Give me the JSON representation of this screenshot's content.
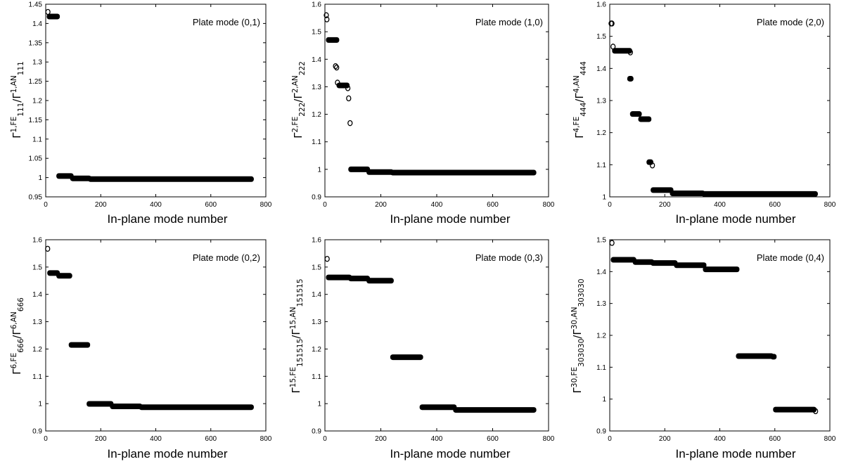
{
  "figure": {
    "panels": [
      {
        "id": "p1",
        "ylabel_main": "Γ",
        "ylabel_sup": "1,FE",
        "ylabel_sub": "111",
        "ylabel_mid": "/Γ",
        "ylabel_sup2": "1,AN",
        "ylabel_sub2": "111",
        "xlabel": "In-plane mode number"
      },
      {
        "id": "p2",
        "ylabel_main": "Γ",
        "ylabel_sup": "2,FE",
        "ylabel_sub": "222",
        "ylabel_mid": "/Γ",
        "ylabel_sup2": "2,AN",
        "ylabel_sub2": "222",
        "xlabel": "In-plane mode number"
      },
      {
        "id": "p3",
        "ylabel_main": "Γ",
        "ylabel_sup": "4,FE",
        "ylabel_sub": "444",
        "ylabel_mid": "/Γ",
        "ylabel_sup2": "4,AN",
        "ylabel_sub2": "444",
        "xlabel": "In-plane mode number"
      },
      {
        "id": "p4",
        "ylabel_main": "Γ",
        "ylabel_sup": "6,FE",
        "ylabel_sub": "666",
        "ylabel_mid": "/Γ",
        "ylabel_sup2": "6,AN",
        "ylabel_sub2": "666",
        "xlabel": "In-plane mode number"
      },
      {
        "id": "p5",
        "ylabel_main": "Γ",
        "ylabel_sup": "15,FE",
        "ylabel_sub": "151515",
        "ylabel_mid": "/Γ",
        "ylabel_sup2": "15,AN",
        "ylabel_sub2": "151515",
        "xlabel": "In-plane mode number"
      },
      {
        "id": "p6",
        "ylabel_main": "Γ",
        "ylabel_sup": "30,FE",
        "ylabel_sub": "303030",
        "ylabel_mid": "/Γ",
        "ylabel_sup2": "30,AN",
        "ylabel_sub2": "303030",
        "xlabel": "In-plane mode number"
      }
    ]
  },
  "chart_data": [
    {
      "type": "scatter",
      "annotation": "Plate mode (0,1)",
      "xlabel": "In-plane mode number",
      "ylabel": "Γ^{1,FE}_{111}/Γ^{1,AN}_{111}",
      "xlim": [
        0,
        800
      ],
      "ylim": [
        0.95,
        1.45
      ],
      "xticks": [
        0,
        200,
        400,
        600,
        800
      ],
      "yticks": [
        0.95,
        1,
        1.05,
        1.1,
        1.15,
        1.2,
        1.25,
        1.3,
        1.35,
        1.4,
        1.45
      ],
      "outliers": [
        {
          "x": 8,
          "y": 1.43
        }
      ],
      "segments": [
        {
          "x_start": 10,
          "x_end": 45,
          "y": 1.418
        },
        {
          "x_start": 45,
          "x_end": 95,
          "y": 1.004
        },
        {
          "x_start": 95,
          "x_end": 160,
          "y": 0.998
        },
        {
          "x_start": 160,
          "x_end": 750,
          "y": 0.996
        }
      ]
    },
    {
      "type": "scatter",
      "annotation": "Plate mode (1,0)",
      "xlabel": "In-plane mode number",
      "ylabel": "Γ^{2,FE}_{222}/Γ^{2,AN}_{222}",
      "xlim": [
        0,
        800
      ],
      "ylim": [
        0.9,
        1.6
      ],
      "xticks": [
        0,
        200,
        400,
        600,
        800
      ],
      "yticks": [
        0.9,
        1,
        1.1,
        1.2,
        1.3,
        1.4,
        1.5,
        1.6
      ],
      "outliers": [
        {
          "x": 5,
          "y": 1.56
        },
        {
          "x": 7,
          "y": 1.545
        },
        {
          "x": 38,
          "y": 1.375
        },
        {
          "x": 42,
          "y": 1.37
        },
        {
          "x": 45,
          "y": 1.315
        },
        {
          "x": 82,
          "y": 1.295
        },
        {
          "x": 85,
          "y": 1.258
        },
        {
          "x": 90,
          "y": 1.168
        }
      ],
      "segments": [
        {
          "x_start": 10,
          "x_end": 45,
          "y": 1.47
        },
        {
          "x_start": 48,
          "x_end": 82,
          "y": 1.305
        },
        {
          "x_start": 90,
          "x_end": 155,
          "y": 1.0
        },
        {
          "x_start": 155,
          "x_end": 240,
          "y": 0.99
        },
        {
          "x_start": 240,
          "x_end": 750,
          "y": 0.988
        }
      ]
    },
    {
      "type": "scatter",
      "annotation": "Plate mode (2,0)",
      "xlabel": "In-plane mode number",
      "ylabel": "Γ^{4,FE}_{444}/Γ^{4,AN}_{444}",
      "xlim": [
        0,
        800
      ],
      "ylim": [
        1,
        1.6
      ],
      "xticks": [
        0,
        200,
        400,
        600,
        800
      ],
      "yticks": [
        1,
        1.1,
        1.2,
        1.3,
        1.4,
        1.5,
        1.6
      ],
      "outliers": [
        {
          "x": 5,
          "y": 1.54
        },
        {
          "x": 8,
          "y": 1.54
        },
        {
          "x": 12,
          "y": 1.468
        },
        {
          "x": 75,
          "y": 1.45
        },
        {
          "x": 155,
          "y": 1.098
        }
      ],
      "segments": [
        {
          "x_start": 15,
          "x_end": 75,
          "y": 1.455
        },
        {
          "x_start": 70,
          "x_end": 80,
          "y": 1.368
        },
        {
          "x_start": 80,
          "x_end": 110,
          "y": 1.258
        },
        {
          "x_start": 110,
          "x_end": 145,
          "y": 1.242
        },
        {
          "x_start": 140,
          "x_end": 152,
          "y": 1.108
        },
        {
          "x_start": 155,
          "x_end": 225,
          "y": 1.021
        },
        {
          "x_start": 225,
          "x_end": 340,
          "y": 1.011
        },
        {
          "x_start": 340,
          "x_end": 750,
          "y": 1.009
        }
      ]
    },
    {
      "type": "scatter",
      "annotation": "Plate mode (0,2)",
      "xlabel": "In-plane mode number",
      "ylabel": "Γ^{6,FE}_{666}/Γ^{6,AN}_{666}",
      "xlim": [
        0,
        800
      ],
      "ylim": [
        0.9,
        1.6
      ],
      "xticks": [
        0,
        200,
        400,
        600,
        800
      ],
      "yticks": [
        0.9,
        1,
        1.1,
        1.2,
        1.3,
        1.4,
        1.5,
        1.6
      ],
      "outliers": [
        {
          "x": 7,
          "y": 1.567
        }
      ],
      "segments": [
        {
          "x_start": 12,
          "x_end": 45,
          "y": 1.478
        },
        {
          "x_start": 45,
          "x_end": 90,
          "y": 1.468
        },
        {
          "x_start": 90,
          "x_end": 155,
          "y": 1.215
        },
        {
          "x_start": 155,
          "x_end": 240,
          "y": 0.999
        },
        {
          "x_start": 240,
          "x_end": 345,
          "y": 0.99
        },
        {
          "x_start": 345,
          "x_end": 750,
          "y": 0.987
        }
      ]
    },
    {
      "type": "scatter",
      "annotation": "Plate mode (0,3)",
      "xlabel": "In-plane mode number",
      "ylabel": "Γ^{15,FE}_{151515}/Γ^{15,AN}_{151515}",
      "xlim": [
        0,
        800
      ],
      "ylim": [
        0.9,
        1.6
      ],
      "xticks": [
        0,
        200,
        400,
        600,
        800
      ],
      "yticks": [
        0.9,
        1,
        1.1,
        1.2,
        1.3,
        1.4,
        1.5,
        1.6
      ],
      "outliers": [
        {
          "x": 8,
          "y": 1.53
        }
      ],
      "segments": [
        {
          "x_start": 10,
          "x_end": 90,
          "y": 1.462
        },
        {
          "x_start": 90,
          "x_end": 155,
          "y": 1.458
        },
        {
          "x_start": 155,
          "x_end": 240,
          "y": 1.45
        },
        {
          "x_start": 240,
          "x_end": 345,
          "y": 1.17
        },
        {
          "x_start": 345,
          "x_end": 465,
          "y": 0.987
        },
        {
          "x_start": 465,
          "x_end": 750,
          "y": 0.977
        }
      ]
    },
    {
      "type": "scatter",
      "annotation": "Plate mode (0,4)",
      "xlabel": "In-plane mode number",
      "ylabel": "Γ^{30,FE}_{303030}/Γ^{30,AN}_{303030}",
      "xlim": [
        0,
        800
      ],
      "ylim": [
        0.9,
        1.5
      ],
      "xticks": [
        0,
        200,
        400,
        600,
        800
      ],
      "yticks": [
        0.9,
        1,
        1.1,
        1.2,
        1.3,
        1.4,
        1.5
      ],
      "outliers": [
        {
          "x": 8,
          "y": 1.49
        },
        {
          "x": 748,
          "y": 0.962
        }
      ],
      "segments": [
        {
          "x_start": 10,
          "x_end": 90,
          "y": 1.437
        },
        {
          "x_start": 90,
          "x_end": 155,
          "y": 1.43
        },
        {
          "x_start": 155,
          "x_end": 240,
          "y": 1.427
        },
        {
          "x_start": 240,
          "x_end": 345,
          "y": 1.42
        },
        {
          "x_start": 345,
          "x_end": 465,
          "y": 1.407
        },
        {
          "x_start": 465,
          "x_end": 590,
          "y": 1.135
        },
        {
          "x_start": 590,
          "x_end": 600,
          "y": 1.133
        },
        {
          "x_start": 600,
          "x_end": 745,
          "y": 0.967
        }
      ]
    }
  ]
}
